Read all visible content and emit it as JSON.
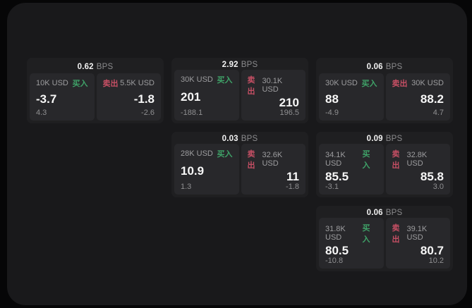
{
  "labels": {
    "bps_unit": "BPS",
    "buy": "买入",
    "sell": "卖出"
  },
  "colors": {
    "page_background": "#060607",
    "window_background": "#19191b",
    "card_background": "#1f1f21",
    "panel_background": "#28282b",
    "buy_green": "#3fa268",
    "sell_red": "#c64f64",
    "value_white": "#f7f7f7",
    "muted_gray": "#9d9d9f"
  },
  "cards": [
    {
      "bps": "0.62",
      "buy": {
        "size": "10K USD",
        "value": "-3.7",
        "delta": "4.3"
      },
      "sell": {
        "size": "5.5K USD",
        "value": "-1.8",
        "delta": "-2.6"
      }
    },
    {
      "bps": "2.92",
      "buy": {
        "size": "30K USD",
        "value": "201",
        "delta": "-188.1"
      },
      "sell": {
        "size": "30.1K USD",
        "value": "210",
        "delta": "196.5"
      }
    },
    {
      "bps": "0.06",
      "buy": {
        "size": "30K USD",
        "value": "88",
        "delta": "-4.9"
      },
      "sell": {
        "size": "30K USD",
        "value": "88.2",
        "delta": "4.7"
      }
    },
    {
      "bps": "0.03",
      "buy": {
        "size": "28K USD",
        "value": "10.9",
        "delta": "1.3"
      },
      "sell": {
        "size": "32.6K USD",
        "value": "11",
        "delta": "-1.8"
      }
    },
    {
      "bps": "0.09",
      "buy": {
        "size": "34.1K USD",
        "value": "85.5",
        "delta": "-3.1"
      },
      "sell": {
        "size": "32.8K USD",
        "value": "85.8",
        "delta": "3.0"
      }
    },
    {
      "bps": "0.06",
      "buy": {
        "size": "31.8K USD",
        "value": "80.5",
        "delta": "-10.8"
      },
      "sell": {
        "size": "39.1K USD",
        "value": "80.7",
        "delta": "10.2"
      }
    }
  ]
}
